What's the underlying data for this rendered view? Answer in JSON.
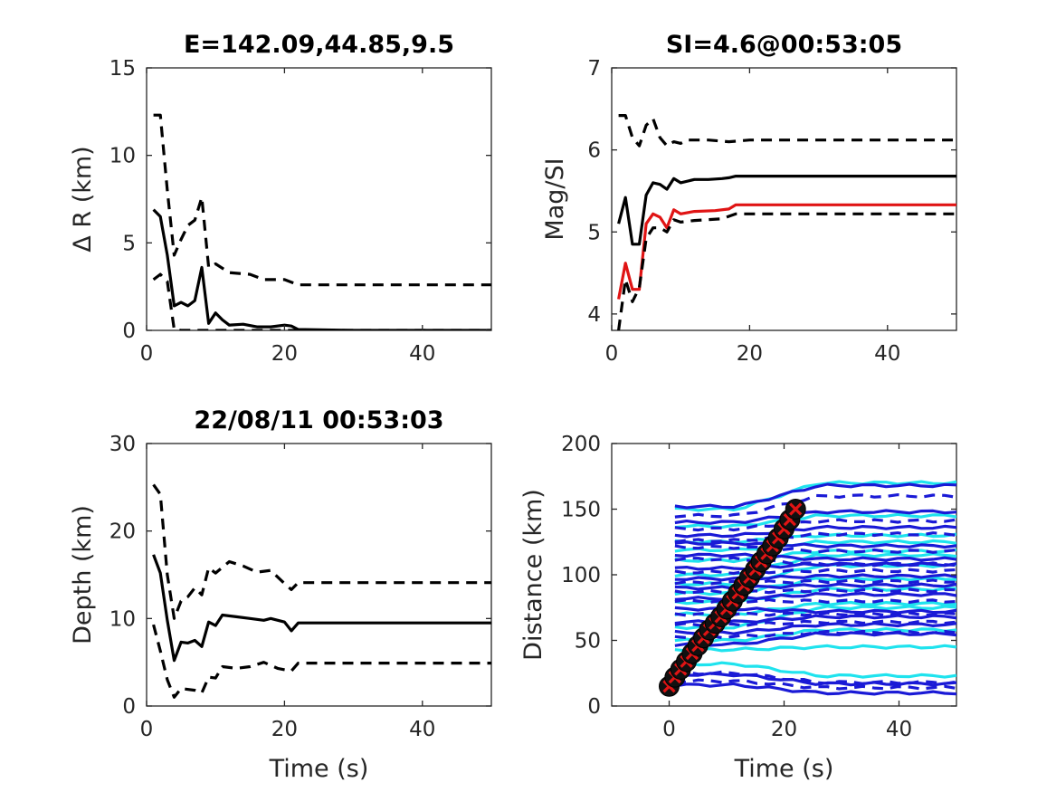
{
  "colors": {
    "black": "#000000",
    "red": "#e01414",
    "blue": "#1a1ad6",
    "cyan": "#1fe3ee",
    "marker_fill": "#111111"
  },
  "chart_data": [
    {
      "type": "line",
      "title": "E=142.09,44.85,9.5",
      "xlabel": "",
      "ylabel": "Δ R (km)",
      "xlim": [
        0,
        50
      ],
      "ylim": [
        0,
        15
      ],
      "xticks": [
        "0",
        "20",
        "40"
      ],
      "yticks": [
        "0",
        "5",
        "10",
        "15"
      ],
      "xtick_values": [
        0,
        20,
        40
      ],
      "ytick_values": [
        0,
        5,
        10,
        15
      ],
      "series": [
        {
          "style": "solid",
          "color": "#000000",
          "points": [
            [
              1,
              6.9
            ],
            [
              2,
              6.5
            ],
            [
              3,
              4.3
            ],
            [
              4,
              1.4
            ],
            [
              5,
              1.6
            ],
            [
              6,
              1.4
            ],
            [
              7,
              1.7
            ],
            [
              8,
              3.6
            ],
            [
              9,
              0.4
            ],
            [
              10,
              1.0
            ],
            [
              11,
              0.6
            ],
            [
              12,
              0.3
            ],
            [
              14,
              0.35
            ],
            [
              16,
              0.2
            ],
            [
              18,
              0.2
            ],
            [
              20,
              0.3
            ],
            [
              21,
              0.25
            ],
            [
              22,
              0.05
            ],
            [
              30,
              0.0
            ],
            [
              50,
              0.0
            ]
          ]
        },
        {
          "style": "dashed",
          "color": "#000000",
          "points": [
            [
              1,
              12.3
            ],
            [
              2,
              12.3
            ],
            [
              3,
              8.0
            ],
            [
              4,
              4.3
            ],
            [
              5,
              5.2
            ],
            [
              6,
              6.0
            ],
            [
              7,
              6.3
            ],
            [
              8,
              7.6
            ],
            [
              9,
              3.6
            ],
            [
              10,
              3.8
            ],
            [
              12,
              3.3
            ],
            [
              15,
              3.2
            ],
            [
              17,
              2.9
            ],
            [
              20,
              2.9
            ],
            [
              22,
              2.6
            ],
            [
              30,
              2.6
            ],
            [
              50,
              2.6
            ]
          ]
        },
        {
          "style": "dashed",
          "color": "#000000",
          "points": [
            [
              1,
              2.9
            ],
            [
              2,
              3.2
            ],
            [
              3,
              2.8
            ],
            [
              4,
              0.05
            ],
            [
              5,
              0.0
            ],
            [
              10,
              0.0
            ],
            [
              50,
              0.0
            ]
          ]
        }
      ]
    },
    {
      "type": "line",
      "title": "SI=4.6@00:53:05",
      "xlabel": "",
      "ylabel": "Mag/SI",
      "xlim": [
        0,
        50
      ],
      "ylim": [
        3.8,
        7
      ],
      "xticks": [
        "0",
        "20",
        "40"
      ],
      "yticks": [
        "4",
        "5",
        "6",
        "7"
      ],
      "xtick_values": [
        0,
        20,
        40
      ],
      "ytick_values": [
        4,
        5,
        6,
        7
      ],
      "series": [
        {
          "style": "solid",
          "color": "#000000",
          "points": [
            [
              1,
              5.1
            ],
            [
              2,
              5.42
            ],
            [
              3,
              4.85
            ],
            [
              4,
              4.85
            ],
            [
              5,
              5.45
            ],
            [
              6,
              5.6
            ],
            [
              7,
              5.58
            ],
            [
              8,
              5.52
            ],
            [
              9,
              5.65
            ],
            [
              10,
              5.6
            ],
            [
              12,
              5.64
            ],
            [
              14,
              5.64
            ],
            [
              16,
              5.65
            ],
            [
              17,
              5.66
            ],
            [
              18,
              5.68
            ],
            [
              30,
              5.68
            ],
            [
              50,
              5.68
            ]
          ]
        },
        {
          "style": "solid",
          "color": "#e01414",
          "points": [
            [
              1,
              4.18
            ],
            [
              2,
              4.62
            ],
            [
              3,
              4.3
            ],
            [
              4,
              4.3
            ],
            [
              5,
              5.1
            ],
            [
              6,
              5.22
            ],
            [
              7,
              5.18
            ],
            [
              8,
              5.05
            ],
            [
              9,
              5.27
            ],
            [
              10,
              5.22
            ],
            [
              12,
              5.25
            ],
            [
              15,
              5.26
            ],
            [
              17,
              5.28
            ],
            [
              18,
              5.33
            ],
            [
              30,
              5.33
            ],
            [
              50,
              5.33
            ]
          ]
        },
        {
          "style": "dashed",
          "color": "#000000",
          "points": [
            [
              1,
              6.42
            ],
            [
              2,
              6.42
            ],
            [
              3,
              6.15
            ],
            [
              4,
              6.05
            ],
            [
              5,
              6.3
            ],
            [
              6,
              6.38
            ],
            [
              7,
              6.15
            ],
            [
              8,
              6.05
            ],
            [
              9,
              6.1
            ],
            [
              10,
              6.08
            ],
            [
              11,
              6.12
            ],
            [
              14,
              6.12
            ],
            [
              17,
              6.1
            ],
            [
              20,
              6.12
            ],
            [
              30,
              6.12
            ],
            [
              50,
              6.12
            ]
          ]
        },
        {
          "style": "dashed",
          "color": "#000000",
          "points": [
            [
              1,
              3.8
            ],
            [
              2,
              4.42
            ],
            [
              3,
              4.15
            ],
            [
              4,
              4.32
            ],
            [
              5,
              4.92
            ],
            [
              6,
              5.05
            ],
            [
              7,
              5.05
            ],
            [
              8,
              5.0
            ],
            [
              9,
              5.15
            ],
            [
              10,
              5.12
            ],
            [
              12,
              5.14
            ],
            [
              16,
              5.16
            ],
            [
              18,
              5.22
            ],
            [
              30,
              5.22
            ],
            [
              50,
              5.22
            ]
          ]
        }
      ]
    },
    {
      "type": "line",
      "title": "22/08/11 00:53:03",
      "xlabel": "Time (s)",
      "ylabel": "Depth (km)",
      "xlim": [
        0,
        50
      ],
      "ylim": [
        0,
        30
      ],
      "xticks": [
        "0",
        "20",
        "40"
      ],
      "yticks": [
        "0",
        "10",
        "20",
        "30"
      ],
      "xtick_values": [
        0,
        20,
        40
      ],
      "ytick_values": [
        0,
        10,
        20,
        30
      ],
      "series": [
        {
          "style": "solid",
          "color": "#000000",
          "points": [
            [
              1,
              17.3
            ],
            [
              2,
              15.2
            ],
            [
              3,
              9.8
            ],
            [
              4,
              5.2
            ],
            [
              5,
              7.3
            ],
            [
              6,
              7.2
            ],
            [
              7,
              7.5
            ],
            [
              8,
              6.8
            ],
            [
              9,
              9.6
            ],
            [
              10,
              9.2
            ],
            [
              11,
              10.4
            ],
            [
              13,
              10.2
            ],
            [
              15,
              10.0
            ],
            [
              17,
              9.8
            ],
            [
              18,
              10.0
            ],
            [
              20,
              9.6
            ],
            [
              21,
              8.6
            ],
            [
              22,
              9.5
            ],
            [
              30,
              9.5
            ],
            [
              50,
              9.5
            ]
          ]
        },
        {
          "style": "dashed",
          "color": "#000000",
          "points": [
            [
              1,
              25.3
            ],
            [
              2,
              24.2
            ],
            [
              3,
              15.0
            ],
            [
              4,
              10.0
            ],
            [
              5,
              12.0
            ],
            [
              6,
              12.5
            ],
            [
              7,
              13.5
            ],
            [
              8,
              12.7
            ],
            [
              9,
              15.8
            ],
            [
              10,
              15.2
            ],
            [
              12,
              16.5
            ],
            [
              14,
              16.0
            ],
            [
              16,
              15.3
            ],
            [
              18,
              15.5
            ],
            [
              20,
              14.0
            ],
            [
              21,
              13.3
            ],
            [
              22,
              14.1
            ],
            [
              30,
              14.1
            ],
            [
              50,
              14.1
            ]
          ]
        },
        {
          "style": "dashed",
          "color": "#000000",
          "points": [
            [
              1,
              9.3
            ],
            [
              2,
              6.3
            ],
            [
              3,
              3.0
            ],
            [
              4,
              1.0
            ],
            [
              5,
              2.0
            ],
            [
              7,
              1.8
            ],
            [
              8,
              1.5
            ],
            [
              9,
              3.3
            ],
            [
              10,
              3.2
            ],
            [
              11,
              4.5
            ],
            [
              13,
              4.3
            ],
            [
              15,
              4.5
            ],
            [
              17,
              5.0
            ],
            [
              19,
              4.3
            ],
            [
              21,
              4.0
            ],
            [
              22,
              4.9
            ],
            [
              30,
              4.9
            ],
            [
              50,
              4.9
            ]
          ]
        }
      ]
    },
    {
      "type": "line",
      "title": "",
      "xlabel": "Time (s)",
      "ylabel": "Distance (km)",
      "xlim": [
        -10,
        50
      ],
      "ylim": [
        0,
        200
      ],
      "xticks": [
        "0",
        "20",
        "40"
      ],
      "yticks": [
        "0",
        "50",
        "100",
        "150",
        "200"
      ],
      "xtick_values": [
        0,
        20,
        40
      ],
      "ytick_values": [
        0,
        50,
        100,
        150,
        200
      ],
      "trace_groups": [
        {
          "name": "cyan solid",
          "color": "#1fe3ee",
          "style": "solid",
          "start_x": 1,
          "end_x": 50,
          "start_y": [
            150,
            137,
            125,
            119,
            111,
            100,
            93,
            86,
            79,
            70,
            60,
            50,
            43,
            32
          ],
          "end_y": [
            170,
            145,
            130,
            125,
            118,
            115,
            107,
            97,
            89,
            78,
            75,
            58,
            45,
            23
          ]
        },
        {
          "name": "blue solid",
          "color": "#1a1ad6",
          "style": "solid",
          "start_x": 1,
          "end_x": 50,
          "start_y": [
            152,
            140,
            130,
            124,
            115,
            105,
            97,
            90,
            82,
            74,
            64,
            56,
            47,
            24,
            16
          ],
          "end_y": [
            168,
            148,
            136,
            122,
            112,
            108,
            99,
            92,
            85,
            72,
            68,
            62,
            55,
            17,
            10
          ]
        },
        {
          "name": "blue dashed",
          "color": "#1a1ad6",
          "style": "dashed",
          "start_x": 1,
          "end_x": 50,
          "start_y": [
            145,
            135,
            126,
            121,
            112,
            102,
            94,
            87,
            80,
            70,
            62,
            53,
            25,
            19
          ],
          "end_y": [
            160,
            141,
            131,
            118,
            108,
            103,
            95,
            88,
            80,
            70,
            64,
            56,
            18,
            14
          ]
        }
      ],
      "markers": {
        "x": [
          0,
          1,
          2,
          3,
          4,
          5,
          6,
          7,
          8,
          9,
          10,
          11,
          12,
          13,
          14,
          15,
          16,
          17,
          18,
          19,
          20,
          21,
          22
        ],
        "y": [
          15,
          22,
          28,
          34,
          40,
          46,
          52,
          58,
          63,
          68,
          74,
          80,
          86,
          92,
          98,
          104,
          110,
          116,
          122,
          128,
          135,
          142,
          150
        ],
        "circle_color": "#111111",
        "cross_color": "#e01414"
      }
    }
  ]
}
